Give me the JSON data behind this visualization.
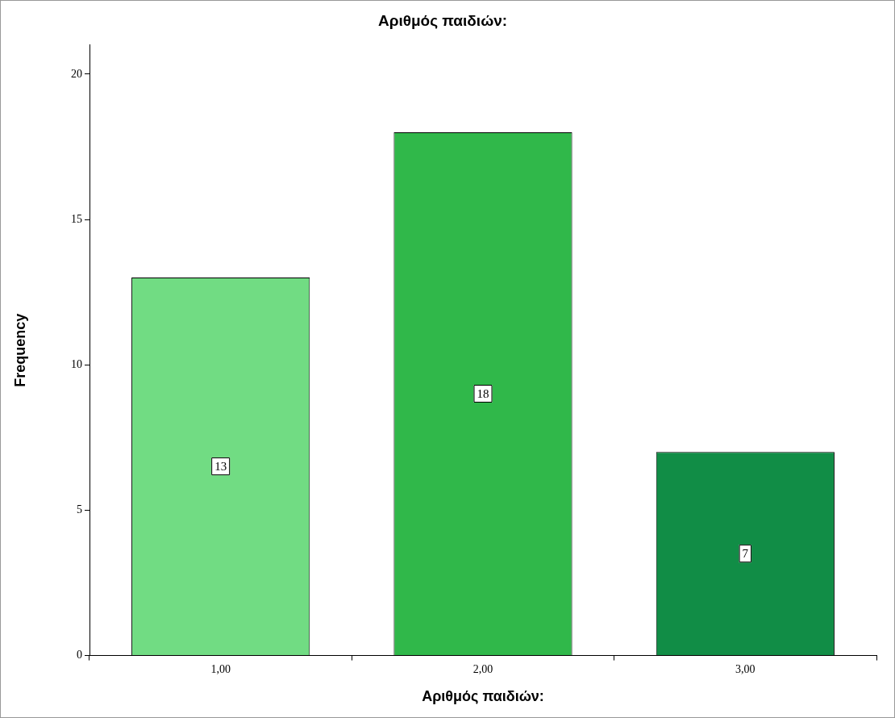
{
  "chart_data": {
    "type": "bar",
    "title": "Αριθμός παιδιών:",
    "xlabel": "Αριθμός παιδιών:",
    "ylabel": "Frequency",
    "categories": [
      "1,00",
      "2,00",
      "3,00"
    ],
    "values": [
      13,
      18,
      7
    ],
    "colors": [
      "#71dc83",
      "#30b84a",
      "#118d46"
    ],
    "ylim": [
      0,
      21
    ],
    "yticks": [
      0,
      5,
      10,
      15,
      20
    ],
    "grid": false,
    "data_labels": true
  }
}
